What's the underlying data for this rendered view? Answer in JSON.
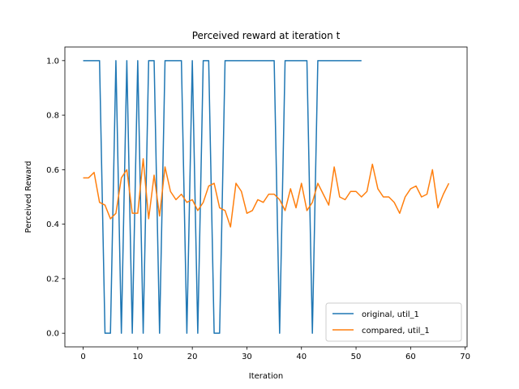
{
  "chart_data": {
    "type": "line",
    "title": "Perceived reward at iteration t",
    "xlabel": "Iteration",
    "ylabel": "Perceived Reward",
    "xlim": [
      -3.35,
      70.35
    ],
    "ylim": [
      -0.05,
      1.05
    ],
    "xticks": [
      0,
      10,
      20,
      30,
      40,
      50,
      60,
      70
    ],
    "yticks": [
      0.0,
      0.2,
      0.4,
      0.6,
      0.8,
      1.0
    ],
    "xtick_labels": [
      "0",
      "10",
      "20",
      "30",
      "40",
      "50",
      "60",
      "70"
    ],
    "ytick_labels": [
      "0.0",
      "0.2",
      "0.4",
      "0.6",
      "0.8",
      "1.0"
    ],
    "grid": false,
    "legend_position": "lower-right",
    "series": [
      {
        "name": "original, util_1",
        "color": "#1f77b4",
        "x": [
          0,
          1,
          2,
          3,
          4,
          5,
          6,
          7,
          8,
          9,
          10,
          11,
          12,
          13,
          14,
          15,
          16,
          17,
          18,
          19,
          20,
          21,
          22,
          23,
          24,
          25,
          26,
          27,
          28,
          29,
          30,
          31,
          32,
          33,
          34,
          35,
          36,
          37,
          38,
          39,
          40,
          41,
          42,
          43,
          44,
          45,
          46,
          47,
          48,
          49,
          50,
          51
        ],
        "values": [
          1,
          1,
          1,
          1,
          0,
          0,
          1,
          0,
          1,
          0,
          1,
          0,
          1,
          1,
          0,
          1,
          1,
          1,
          1,
          0,
          1,
          0,
          1,
          1,
          0,
          0,
          1,
          1,
          1,
          1,
          1,
          1,
          1,
          1,
          1,
          1,
          0,
          1,
          1,
          1,
          1,
          1,
          0,
          1,
          1,
          1,
          1,
          1,
          1,
          1,
          1,
          1
        ]
      },
      {
        "name": "compared, util_1",
        "color": "#ff7f0e",
        "x": [
          0,
          1,
          2,
          3,
          4,
          5,
          6,
          7,
          8,
          9,
          10,
          11,
          12,
          13,
          14,
          15,
          16,
          17,
          18,
          19,
          20,
          21,
          22,
          23,
          24,
          25,
          26,
          27,
          28,
          29,
          30,
          31,
          32,
          33,
          34,
          35,
          36,
          37,
          38,
          39,
          40,
          41,
          42,
          43,
          44,
          45,
          46,
          47,
          48,
          49,
          50,
          51,
          52,
          53,
          54,
          55,
          56,
          57,
          58,
          59,
          60,
          61,
          62,
          63,
          64,
          65,
          66,
          67
        ],
        "values": [
          0.57,
          0.57,
          0.59,
          0.48,
          0.47,
          0.42,
          0.44,
          0.57,
          0.6,
          0.44,
          0.44,
          0.64,
          0.42,
          0.58,
          0.43,
          0.61,
          0.52,
          0.49,
          0.51,
          0.48,
          0.49,
          0.45,
          0.48,
          0.54,
          0.55,
          0.46,
          0.45,
          0.39,
          0.55,
          0.52,
          0.44,
          0.45,
          0.49,
          0.48,
          0.51,
          0.51,
          0.49,
          0.45,
          0.53,
          0.46,
          0.55,
          0.45,
          0.48,
          0.55,
          0.51,
          0.47,
          0.61,
          0.5,
          0.49,
          0.52,
          0.52,
          0.5,
          0.52,
          0.62,
          0.53,
          0.5,
          0.5,
          0.48,
          0.44,
          0.5,
          0.53,
          0.54,
          0.5,
          0.51,
          0.6,
          0.46,
          0.51,
          0.55
        ]
      }
    ]
  }
}
